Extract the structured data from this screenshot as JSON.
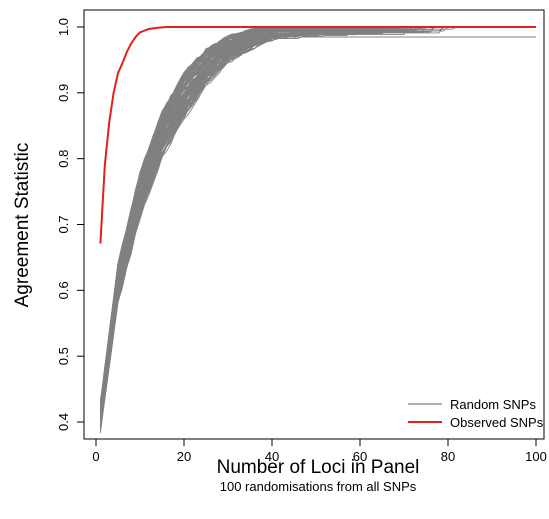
{
  "chart_data": {
    "type": "line",
    "xlabel": "Number of Loci in Panel",
    "subtitle": "100 randomisations from all SNPs",
    "ylabel": "Agreement Statistic",
    "xlim": [
      0,
      100
    ],
    "ylim": [
      0.4,
      1.0
    ],
    "x_ticks": [
      "0",
      "20",
      "40",
      "60",
      "80",
      "100"
    ],
    "y_ticks": [
      "0.4",
      "0.5",
      "0.6",
      "0.7",
      "0.8",
      "0.9",
      "1.0"
    ],
    "grid": false,
    "legend_position": "bottom-right",
    "legend": [
      {
        "label": "Random SNPs",
        "color": "#808080"
      },
      {
        "label": "Observed SNPs",
        "color": "#e3201b"
      }
    ],
    "series": [
      {
        "name": "Observed SNPs",
        "color": "#e3201b",
        "x": [
          1,
          2,
          3,
          4,
          5,
          6,
          7,
          8,
          9,
          10,
          12,
          14,
          16,
          20,
          30,
          40,
          60,
          80,
          100
        ],
        "y": [
          0.671,
          0.79,
          0.855,
          0.9,
          0.93,
          0.945,
          0.962,
          0.975,
          0.985,
          0.992,
          0.997,
          0.999,
          1.0,
          1.0,
          1.0,
          1.0,
          1.0,
          1.0,
          1.0
        ]
      },
      {
        "name": "Random SNPs",
        "color": "#808080",
        "count": 100,
        "y_start_range": [
          0.385,
          0.43
        ],
        "x_plateau_range": [
          40,
          82
        ],
        "y_plateau_range": [
          0.985,
          1.0
        ],
        "envelope": {
          "x": [
            1,
            5,
            10,
            15,
            20,
            25,
            30,
            35,
            40,
            50,
            60,
            80,
            100
          ],
          "y_low": [
            0.385,
            0.58,
            0.71,
            0.8,
            0.86,
            0.91,
            0.945,
            0.965,
            0.98,
            0.985,
            0.985,
            0.985,
            0.985
          ],
          "y_high": [
            0.43,
            0.64,
            0.78,
            0.87,
            0.93,
            0.965,
            0.985,
            0.995,
            1.0,
            1.0,
            1.0,
            1.0,
            1.0
          ]
        }
      }
    ]
  }
}
